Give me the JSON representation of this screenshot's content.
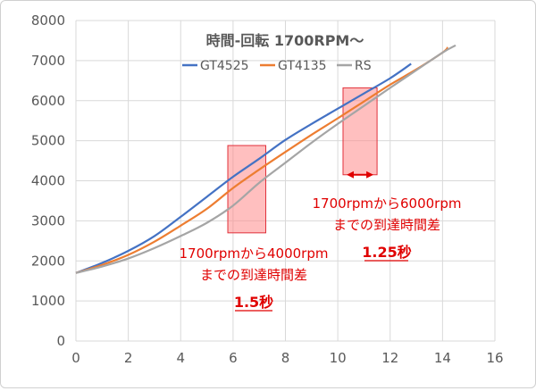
{
  "chart_data": {
    "type": "line",
    "title": "時間-回転 1700RPM～",
    "xlim": [
      0,
      16
    ],
    "ylim": [
      0,
      8000
    ],
    "x_ticks": [
      "0",
      "2",
      "4",
      "6",
      "8",
      "10",
      "12",
      "14",
      "16"
    ],
    "y_ticks": [
      "0",
      "1000",
      "2000",
      "3000",
      "4000",
      "5000",
      "6000",
      "7000",
      "8000"
    ],
    "grid": true,
    "legend": "top",
    "series": [
      {
        "name": "GT4525",
        "color": "#4472C4",
        "points": [
          [
            0,
            1700
          ],
          [
            1,
            1950
          ],
          [
            2,
            2250
          ],
          [
            3,
            2620
          ],
          [
            4,
            3100
          ],
          [
            5,
            3600
          ],
          [
            6,
            4100
          ],
          [
            7,
            4550
          ],
          [
            8,
            5020
          ],
          [
            9,
            5420
          ],
          [
            10,
            5800
          ],
          [
            11,
            6180
          ],
          [
            12,
            6560
          ],
          [
            12.8,
            6920
          ]
        ]
      },
      {
        "name": "GT4135",
        "color": "#ED7D31",
        "points": [
          [
            0,
            1700
          ],
          [
            1,
            1900
          ],
          [
            2,
            2150
          ],
          [
            3,
            2480
          ],
          [
            4,
            2880
          ],
          [
            5,
            3300
          ],
          [
            6,
            3820
          ],
          [
            7,
            4280
          ],
          [
            8,
            4720
          ],
          [
            9,
            5150
          ],
          [
            10,
            5560
          ],
          [
            11,
            5980
          ],
          [
            12,
            6400
          ],
          [
            13,
            6780
          ],
          [
            14,
            7200
          ],
          [
            14.2,
            7330
          ]
        ]
      },
      {
        "name": "RS",
        "color": "#A5A5A5",
        "points": [
          [
            0,
            1700
          ],
          [
            1,
            1860
          ],
          [
            2,
            2060
          ],
          [
            3,
            2320
          ],
          [
            4,
            2620
          ],
          [
            5,
            2950
          ],
          [
            6,
            3380
          ],
          [
            7,
            3950
          ],
          [
            8,
            4450
          ],
          [
            9,
            4950
          ],
          [
            10,
            5420
          ],
          [
            11,
            5870
          ],
          [
            12,
            6320
          ],
          [
            13,
            6760
          ],
          [
            14,
            7200
          ],
          [
            14.5,
            7380
          ]
        ]
      }
    ],
    "highlight_regions": [
      {
        "x": [
          5.8,
          7.25
        ],
        "y": [
          2700,
          4880
        ]
      },
      {
        "x": [
          10.2,
          11.5
        ],
        "y": [
          4150,
          6320
        ]
      }
    ],
    "annotations": [
      {
        "lines": [
          "1700rpmから4000rpm",
          "までの到達時間差"
        ],
        "value": "1.5秒"
      },
      {
        "lines": [
          "1700rpmから6000rpm",
          "までの到達時間差"
        ],
        "value": "1.25秒"
      }
    ],
    "colors": {
      "highlight_fill": "#FF8A8A",
      "highlight_stroke": "#E0303A",
      "annotation_text": "#E00000",
      "grid": "#D9D9D9",
      "axis_text": "#595959"
    }
  }
}
